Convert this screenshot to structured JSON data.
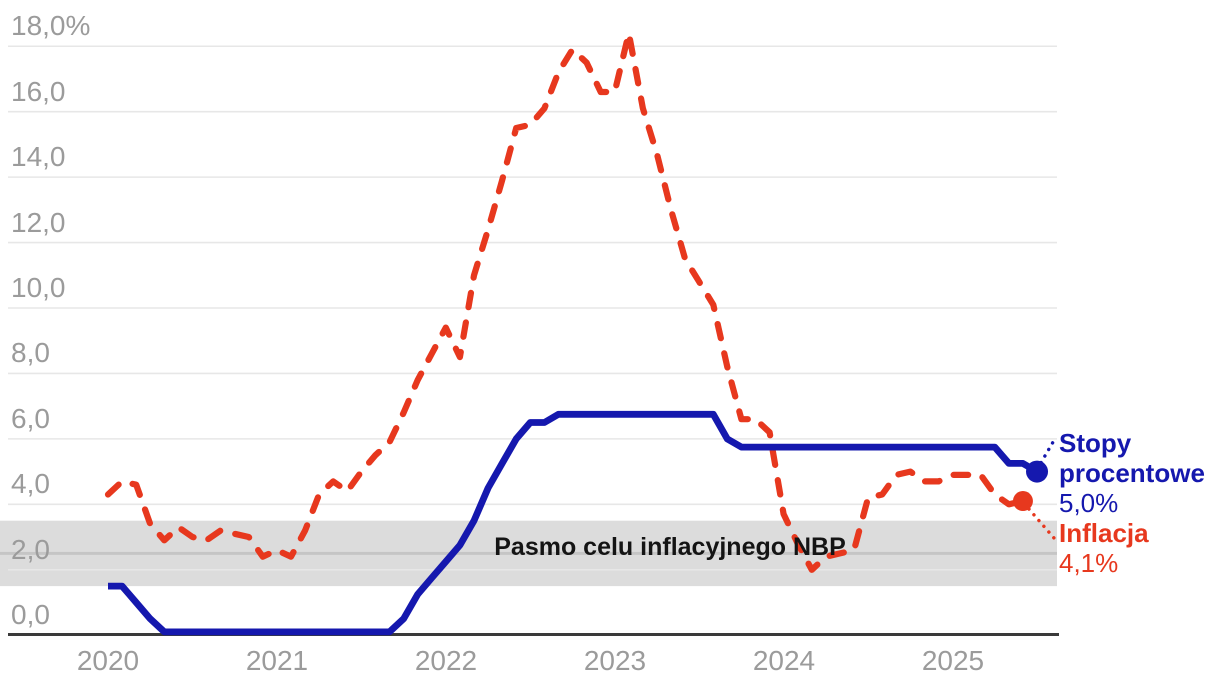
{
  "chart_data": {
    "type": "line",
    "title": "",
    "unit": "%",
    "ylim": [
      0,
      18.4
    ],
    "grid": "horizontal",
    "x_labels": [
      "2020",
      "2021",
      "2022",
      "2023",
      "2024",
      "2025"
    ],
    "y_ticks": [
      {
        "value": 18,
        "label": "18,0%"
      },
      {
        "value": 16,
        "label": "16,0"
      },
      {
        "value": 14,
        "label": "14,0"
      },
      {
        "value": 12,
        "label": "12,0"
      },
      {
        "value": 10,
        "label": "10,0"
      },
      {
        "value": 8,
        "label": "8,0"
      },
      {
        "value": 6,
        "label": "6,0"
      },
      {
        "value": 4,
        "label": "4,0"
      },
      {
        "value": 2,
        "label": "2,0"
      },
      {
        "value": 0,
        "label": "0,0"
      }
    ],
    "target_band": {
      "label": "Pasmo celu inflacyjnego NBP",
      "from": 1.5,
      "to": 3.5,
      "center": 2.5
    },
    "x_start": "2020-01",
    "x_step": "month",
    "series": [
      {
        "name": "Stopy procentowe",
        "style": "solid",
        "end_label": "5,0%",
        "end_value": 5.0,
        "values": [
          1.5,
          1.5,
          1.0,
          0.5,
          0.1,
          0.1,
          0.1,
          0.1,
          0.1,
          0.1,
          0.1,
          0.1,
          0.1,
          0.1,
          0.1,
          0.1,
          0.1,
          0.1,
          0.1,
          0.1,
          0.1,
          0.5,
          1.25,
          1.75,
          2.25,
          2.75,
          3.5,
          4.5,
          5.25,
          6.0,
          6.5,
          6.5,
          6.75,
          6.75,
          6.75,
          6.75,
          6.75,
          6.75,
          6.75,
          6.75,
          6.75,
          6.75,
          6.75,
          6.75,
          6.0,
          5.75,
          5.75,
          5.75,
          5.75,
          5.75,
          5.75,
          5.75,
          5.75,
          5.75,
          5.75,
          5.75,
          5.75,
          5.75,
          5.75,
          5.75,
          5.75,
          5.75,
          5.75,
          5.75,
          5.25,
          5.25,
          5.0
        ]
      },
      {
        "name": "Inflacja",
        "style": "dashed",
        "end_label": "4,1%",
        "end_value": 4.1,
        "values": [
          4.3,
          4.7,
          4.6,
          3.4,
          2.9,
          3.3,
          3.0,
          2.9,
          3.2,
          3.1,
          3.0,
          2.4,
          2.6,
          2.4,
          3.2,
          4.3,
          4.7,
          4.4,
          5.0,
          5.5,
          5.9,
          6.8,
          7.8,
          8.6,
          9.4,
          8.5,
          11.0,
          12.4,
          13.9,
          15.5,
          15.6,
          16.1,
          17.2,
          17.9,
          17.5,
          16.6,
          16.6,
          18.4,
          16.1,
          14.7,
          13.0,
          11.5,
          10.8,
          10.1,
          8.2,
          6.6,
          6.6,
          6.2,
          3.7,
          2.8,
          2.0,
          2.4,
          2.5,
          2.6,
          4.2,
          4.3,
          4.9,
          5.0,
          4.7,
          4.7,
          4.9,
          4.9,
          4.9,
          4.3,
          4.0,
          4.1
        ]
      }
    ],
    "legend_position": "right-of-last-point"
  },
  "colors": {
    "rates_blue": "#1518ae",
    "inflation_red": "#e7381e",
    "grid": "#e7e7e7",
    "axis": "#3a3a3a",
    "gray_text": "#9b9b9b",
    "band_fill": "#dcdcdc",
    "band_center_line": "#c5c5c5",
    "band_label_text": "#141414"
  }
}
